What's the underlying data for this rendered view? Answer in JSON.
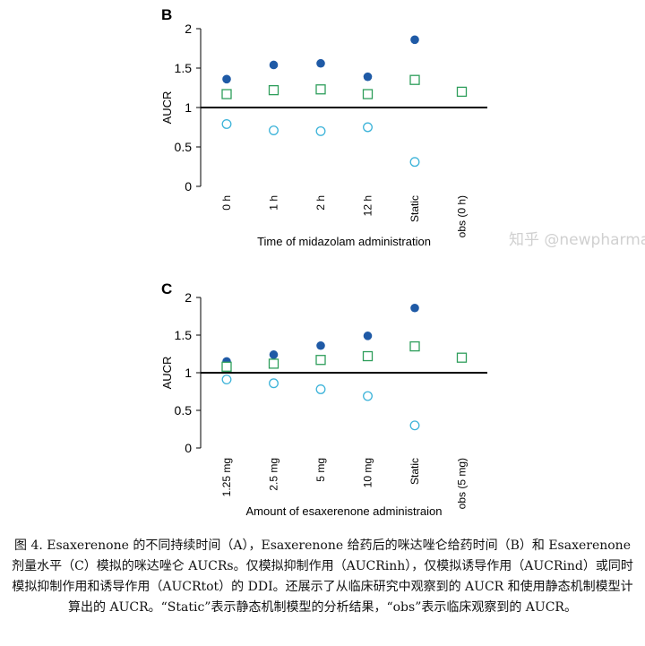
{
  "chart_data": [
    {
      "type": "scatter",
      "panel_label": "B",
      "title": "",
      "ylabel": "AUCR",
      "xlabel": "Time of midazolam administration",
      "categories": [
        "0 h",
        "1 h",
        "2 h",
        "12 h",
        "Static",
        "obs (0 h)"
      ],
      "ylim": [
        0,
        2
      ],
      "yticks": [
        "0",
        "0.5",
        "1",
        "1.5",
        "2"
      ],
      "reference_line": 1,
      "series": [
        {
          "marker": "filled-circle",
          "color": "#1f5aa6",
          "values": [
            1.36,
            1.54,
            1.56,
            1.39,
            1.86,
            null
          ]
        },
        {
          "marker": "open-square",
          "color": "#2e9e5b",
          "values": [
            1.17,
            1.22,
            1.23,
            1.17,
            1.35,
            1.2
          ]
        },
        {
          "marker": "open-circle",
          "color": "#3cb3d9",
          "values": [
            0.79,
            0.71,
            0.7,
            0.75,
            0.31,
            null
          ]
        }
      ]
    },
    {
      "type": "scatter",
      "panel_label": "C",
      "title": "",
      "ylabel": "AUCR",
      "xlabel": "Amount of esaxerenone administraion",
      "categories": [
        "1.25 mg",
        "2.5 mg",
        "5 mg",
        "10 mg",
        "Static",
        "obs (5 mg)"
      ],
      "ylim": [
        0,
        2
      ],
      "yticks": [
        "0",
        "0.5",
        "1",
        "1.5",
        "2"
      ],
      "reference_line": 1,
      "series": [
        {
          "marker": "filled-circle",
          "color": "#1f5aa6",
          "values": [
            1.15,
            1.24,
            1.36,
            1.49,
            1.86,
            null
          ]
        },
        {
          "marker": "open-square",
          "color": "#2e9e5b",
          "values": [
            1.08,
            1.12,
            1.17,
            1.22,
            1.35,
            1.2
          ]
        },
        {
          "marker": "open-circle",
          "color": "#3cb3d9",
          "values": [
            0.91,
            0.86,
            0.78,
            0.69,
            0.3,
            null
          ]
        }
      ]
    }
  ],
  "caption": "图 4. Esaxerenone 的不同持续时间（A），Esaxerenone 给药后的咪达唑仑给药时间（B）和 Esaxerenone 剂量水平（C）模拟的咪达唑仑 AUCRs。仅模拟抑制作用（AUCRinh），仅模拟诱导作用（AUCRind）或同时模拟抑制作用和诱导作用（AUCRtot）的 DDI。还展示了从临床研究中观察到的 AUCR 和使用静态机制模型计算出的 AUCR。“Static”表示静态机制模型的分析结果，“obs”表示临床观察到的 AUCR。",
  "watermark": "知乎 @newpharma"
}
